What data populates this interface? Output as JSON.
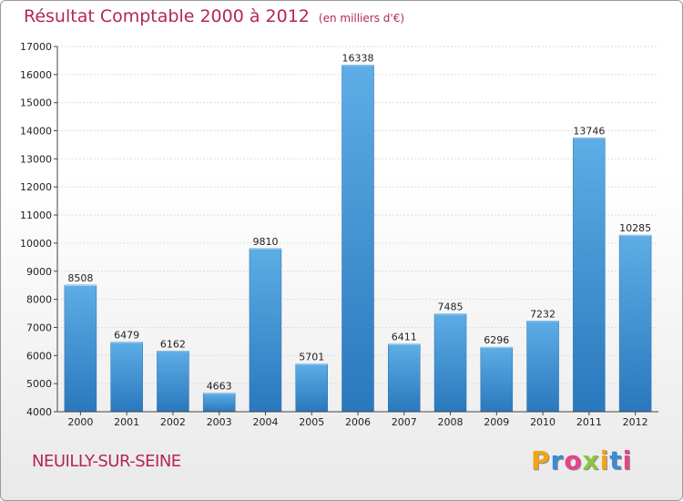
{
  "title": "Résultat Comptable 2000 à 2012",
  "subtitle": "(en milliers d'€)",
  "city": "NEUILLY-SUR-SEINE",
  "logo": {
    "letters": [
      "P",
      "r",
      "o",
      "x",
      "i",
      "t",
      "i"
    ],
    "colors": [
      "#f2a516",
      "#3a8ad6",
      "#e8428a",
      "#8cc63f",
      "#f2a516",
      "#3a8ad6",
      "#e8428a"
    ]
  },
  "colors": {
    "title": "#b3265a",
    "bar_top": "#5dade6",
    "bar_bottom": "#2a78bd",
    "grid": "#dcdcdc"
  },
  "chart_data": {
    "type": "bar",
    "title": "Résultat Comptable 2000 à 2012",
    "subtitle": "(en milliers d'€)",
    "categories": [
      "2000",
      "2001",
      "2002",
      "2003",
      "2004",
      "2005",
      "2006",
      "2007",
      "2008",
      "2009",
      "2010",
      "2011",
      "2012"
    ],
    "values": [
      8508,
      6479,
      6162,
      4663,
      9810,
      5701,
      16338,
      6411,
      7485,
      6296,
      7232,
      13746,
      10285
    ],
    "data_labels": [
      "8508",
      "6479",
      "6162",
      "4663",
      "9810",
      "5701",
      "16338",
      "6411",
      "7485",
      "6296",
      "7232",
      "13746",
      "10285"
    ],
    "yticks": [
      4000,
      5000,
      6000,
      7000,
      8000,
      9000,
      10000,
      11000,
      12000,
      13000,
      14000,
      15000,
      16000,
      17000
    ],
    "ytick_labels": [
      "4000",
      "5000",
      "6000",
      "7000",
      "8000",
      "9000",
      "10000",
      "11000",
      "12000",
      "13000",
      "14000",
      "15000",
      "16000",
      "17000"
    ],
    "ylim": [
      4000,
      17000
    ],
    "xlabel": "",
    "ylabel": "",
    "grid": true
  }
}
